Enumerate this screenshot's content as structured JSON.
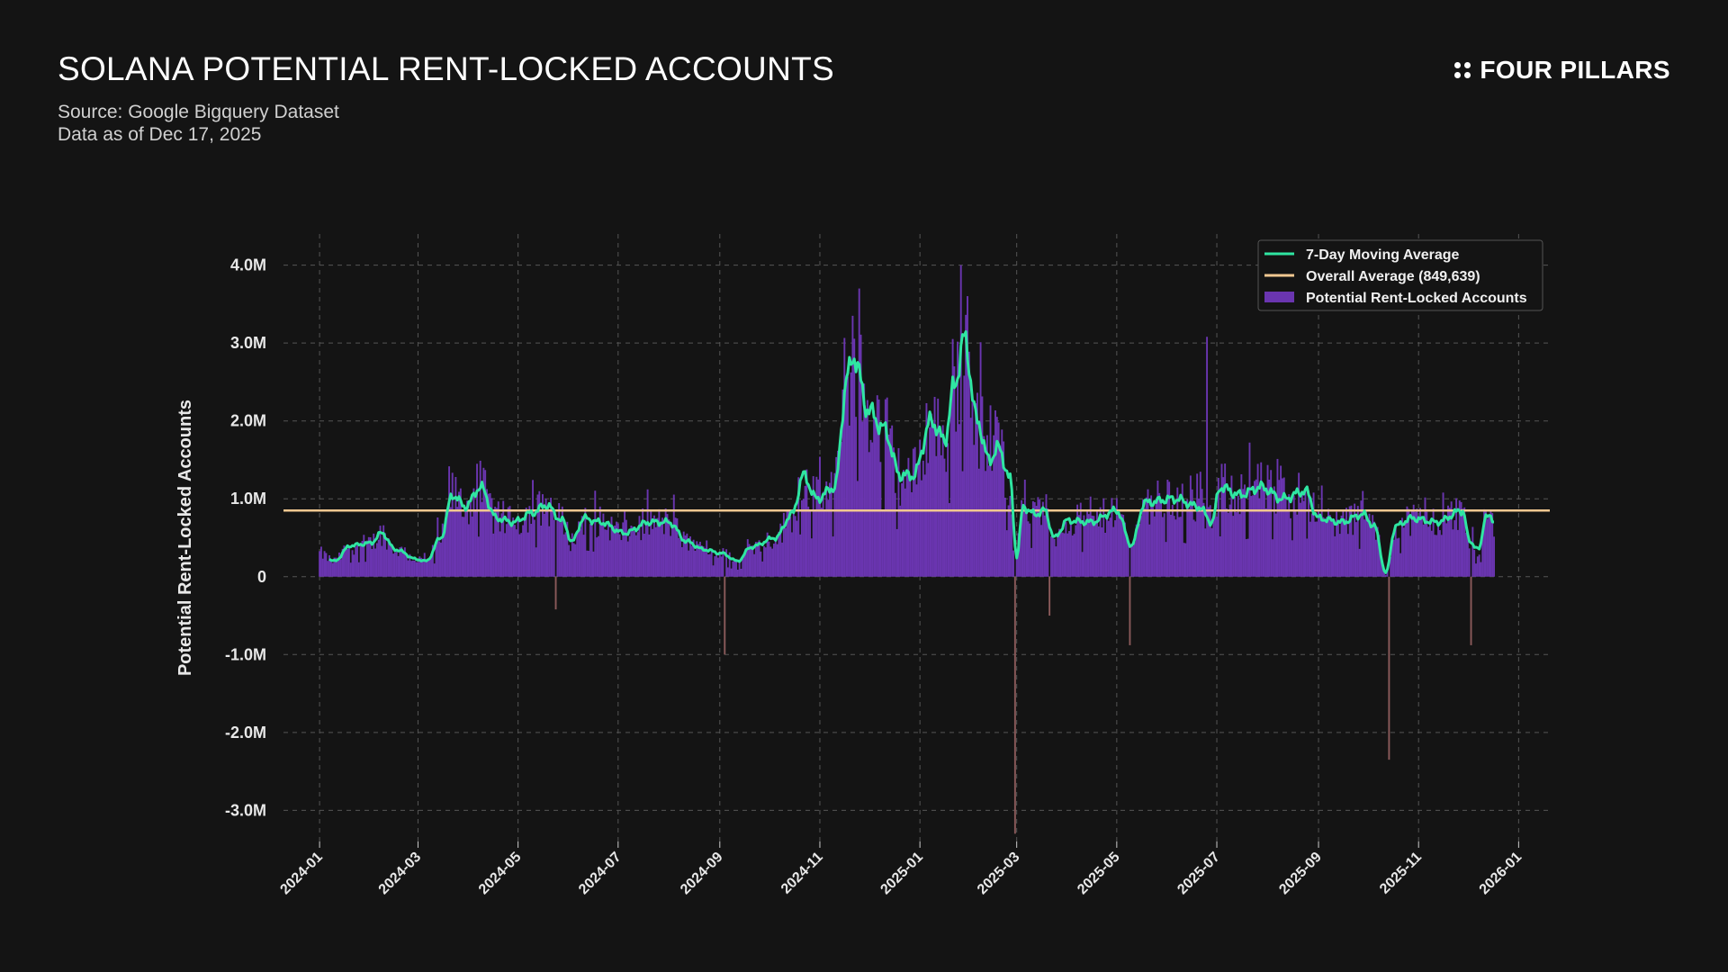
{
  "header": {
    "title": "SOLANA POTENTIAL RENT-LOCKED ACCOUNTS",
    "source": "Source: Google Bigquery Dataset",
    "as_of": "Data as of Dec 17, 2025"
  },
  "brand": {
    "name": "FOUR PILLARS",
    "icon": "four-dots-icon"
  },
  "colors": {
    "background": "#141414",
    "bars": "#6a35b0",
    "bars_negative": "#8a5a5a",
    "moving_average": "#2fe6a2",
    "overall_average": "#f2c891",
    "grid": "#555555"
  },
  "chart_data": {
    "type": "bar",
    "ylabel": "Potential Rent-Locked Accounts",
    "xlabel": "",
    "ylim": [
      -3400000,
      4400000
    ],
    "y_ticks": [
      {
        "value": 4000000,
        "label": "4.0M"
      },
      {
        "value": 3000000,
        "label": "3.0M"
      },
      {
        "value": 2000000,
        "label": "2.0M"
      },
      {
        "value": 1000000,
        "label": "1.0M"
      },
      {
        "value": 0,
        "label": "0"
      },
      {
        "value": -1000000,
        "label": "-1.0M"
      },
      {
        "value": -2000000,
        "label": "-2.0M"
      },
      {
        "value": -3000000,
        "label": "-3.0M"
      }
    ],
    "x_ticks": [
      "2024-01",
      "2024-03",
      "2024-05",
      "2024-07",
      "2024-09",
      "2024-11",
      "2025-01",
      "2025-03",
      "2025-05",
      "2025-07",
      "2025-09",
      "2025-11",
      "2026-01"
    ],
    "x_range": [
      "2023-12-10",
      "2026-01-20"
    ],
    "grid": true,
    "legend_position": "top-right",
    "legend": [
      {
        "label": "7-Day Moving Average",
        "kind": "line",
        "color": "#2fe6a2"
      },
      {
        "label": "Overall Average (849,639)",
        "kind": "line",
        "color": "#f2c891"
      },
      {
        "label": "Potential Rent-Locked Accounts",
        "kind": "bar",
        "color": "#6a35b0"
      }
    ],
    "overall_average": 849639,
    "series_range": [
      "2024-01-01",
      "2025-12-17"
    ],
    "moving_average_keypoints": [
      [
        "2024-01-01",
        300000
      ],
      [
        "2024-01-10",
        200000
      ],
      [
        "2024-01-20",
        400000
      ],
      [
        "2024-02-01",
        430000
      ],
      [
        "2024-02-08",
        560000
      ],
      [
        "2024-02-16",
        350000
      ],
      [
        "2024-03-01",
        220000
      ],
      [
        "2024-03-06",
        200000
      ],
      [
        "2024-03-15",
        500000
      ],
      [
        "2024-03-22",
        1050000
      ],
      [
        "2024-03-30",
        900000
      ],
      [
        "2024-04-08",
        1150000
      ],
      [
        "2024-04-18",
        750000
      ],
      [
        "2024-04-28",
        700000
      ],
      [
        "2024-05-10",
        820000
      ],
      [
        "2024-05-18",
        920000
      ],
      [
        "2024-05-28",
        720000
      ],
      [
        "2024-06-03",
        450000
      ],
      [
        "2024-06-10",
        750000
      ],
      [
        "2024-06-20",
        700000
      ],
      [
        "2024-07-05",
        560000
      ],
      [
        "2024-07-20",
        700000
      ],
      [
        "2024-08-01",
        700000
      ],
      [
        "2024-08-12",
        450000
      ],
      [
        "2024-08-22",
        350000
      ],
      [
        "2024-09-02",
        300000
      ],
      [
        "2024-09-12",
        200000
      ],
      [
        "2024-09-20",
        380000
      ],
      [
        "2024-10-05",
        500000
      ],
      [
        "2024-10-15",
        800000
      ],
      [
        "2024-10-22",
        1300000
      ],
      [
        "2024-10-30",
        1000000
      ],
      [
        "2024-11-10",
        1150000
      ],
      [
        "2024-11-18",
        2600000
      ],
      [
        "2024-11-22",
        2830000
      ],
      [
        "2024-11-30",
        2150000
      ],
      [
        "2024-12-10",
        1900000
      ],
      [
        "2024-12-20",
        1300000
      ],
      [
        "2024-12-28",
        1300000
      ],
      [
        "2025-01-08",
        2000000
      ],
      [
        "2025-01-16",
        1750000
      ],
      [
        "2025-01-22",
        2450000
      ],
      [
        "2025-01-28",
        3050000
      ],
      [
        "2025-02-05",
        2000000
      ],
      [
        "2025-02-12",
        1500000
      ],
      [
        "2025-02-18",
        1650000
      ],
      [
        "2025-02-25",
        1250000
      ],
      [
        "2025-03-01",
        250000
      ],
      [
        "2025-03-05",
        900000
      ],
      [
        "2025-03-12",
        800000
      ],
      [
        "2025-03-18",
        850000
      ],
      [
        "2025-03-24",
        500000
      ],
      [
        "2025-04-01",
        720000
      ],
      [
        "2025-04-15",
        700000
      ],
      [
        "2025-05-01",
        850000
      ],
      [
        "2025-05-10",
        400000
      ],
      [
        "2025-05-18",
        950000
      ],
      [
        "2025-06-05",
        1000000
      ],
      [
        "2025-06-20",
        900000
      ],
      [
        "2025-06-28",
        700000
      ],
      [
        "2025-07-03",
        1150000
      ],
      [
        "2025-07-15",
        1050000
      ],
      [
        "2025-07-28",
        1150000
      ],
      [
        "2025-08-10",
        1000000
      ],
      [
        "2025-08-24",
        1100000
      ],
      [
        "2025-09-01",
        750000
      ],
      [
        "2025-09-15",
        700000
      ],
      [
        "2025-09-28",
        800000
      ],
      [
        "2025-10-05",
        650000
      ],
      [
        "2025-10-12",
        50000
      ],
      [
        "2025-10-18",
        650000
      ],
      [
        "2025-10-28",
        750000
      ],
      [
        "2025-11-12",
        700000
      ],
      [
        "2025-11-28",
        850000
      ],
      [
        "2025-12-02",
        450000
      ],
      [
        "2025-12-08",
        350000
      ],
      [
        "2025-12-12",
        800000
      ],
      [
        "2025-12-17",
        700000
      ]
    ],
    "bar_extremes": [
      [
        "2024-04-06",
        1450000
      ],
      [
        "2024-05-24",
        -420000
      ],
      [
        "2024-09-04",
        -1000000
      ],
      [
        "2024-11-21",
        3350000
      ],
      [
        "2025-01-26",
        4000000
      ],
      [
        "2025-02-13",
        2200000
      ],
      [
        "2025-02-28",
        -3300000
      ],
      [
        "2025-03-21",
        -500000
      ],
      [
        "2025-05-09",
        -880000
      ],
      [
        "2025-06-25",
        3080000
      ],
      [
        "2025-10-14",
        -2350000
      ],
      [
        "2025-12-03",
        -880000
      ]
    ]
  }
}
